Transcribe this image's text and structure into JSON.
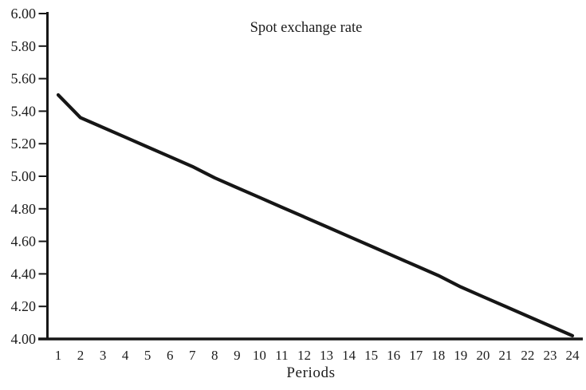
{
  "chart_data": {
    "type": "line",
    "title": "Spot exchange rate",
    "xlabel": "Periods",
    "ylabel": "",
    "x": [
      1,
      2,
      3,
      4,
      5,
      6,
      7,
      8,
      9,
      10,
      11,
      12,
      13,
      14,
      15,
      16,
      17,
      18,
      19,
      20,
      21,
      22,
      23,
      24
    ],
    "xtick_labels": [
      "1",
      "2",
      "3",
      "4",
      "5",
      "6",
      "7",
      "8",
      "9",
      "10",
      "11",
      "12",
      "13",
      "14",
      "15",
      "16",
      "17",
      "18",
      "19",
      "20",
      "21",
      "22",
      "23",
      "24"
    ],
    "series": [
      {
        "name": "Spot exchange rate",
        "values": [
          5.5,
          5.36,
          5.3,
          5.24,
          5.18,
          5.12,
          5.06,
          4.99,
          4.93,
          4.87,
          4.81,
          4.75,
          4.69,
          4.63,
          4.57,
          4.51,
          4.45,
          4.39,
          4.32,
          4.26,
          4.2,
          4.14,
          4.08,
          4.02
        ]
      }
    ],
    "ylim": [
      4.0,
      6.0
    ],
    "ytick_labels": [
      "4.00",
      "4.20",
      "4.40",
      "4.60",
      "4.80",
      "5.00",
      "5.20",
      "5.40",
      "5.60",
      "5.80",
      "6.00"
    ],
    "grid": false,
    "legend": "none",
    "line_color": "#161616",
    "axis_color": "#161616",
    "text_color": "#1c1c1c",
    "background": "#ffffff"
  }
}
